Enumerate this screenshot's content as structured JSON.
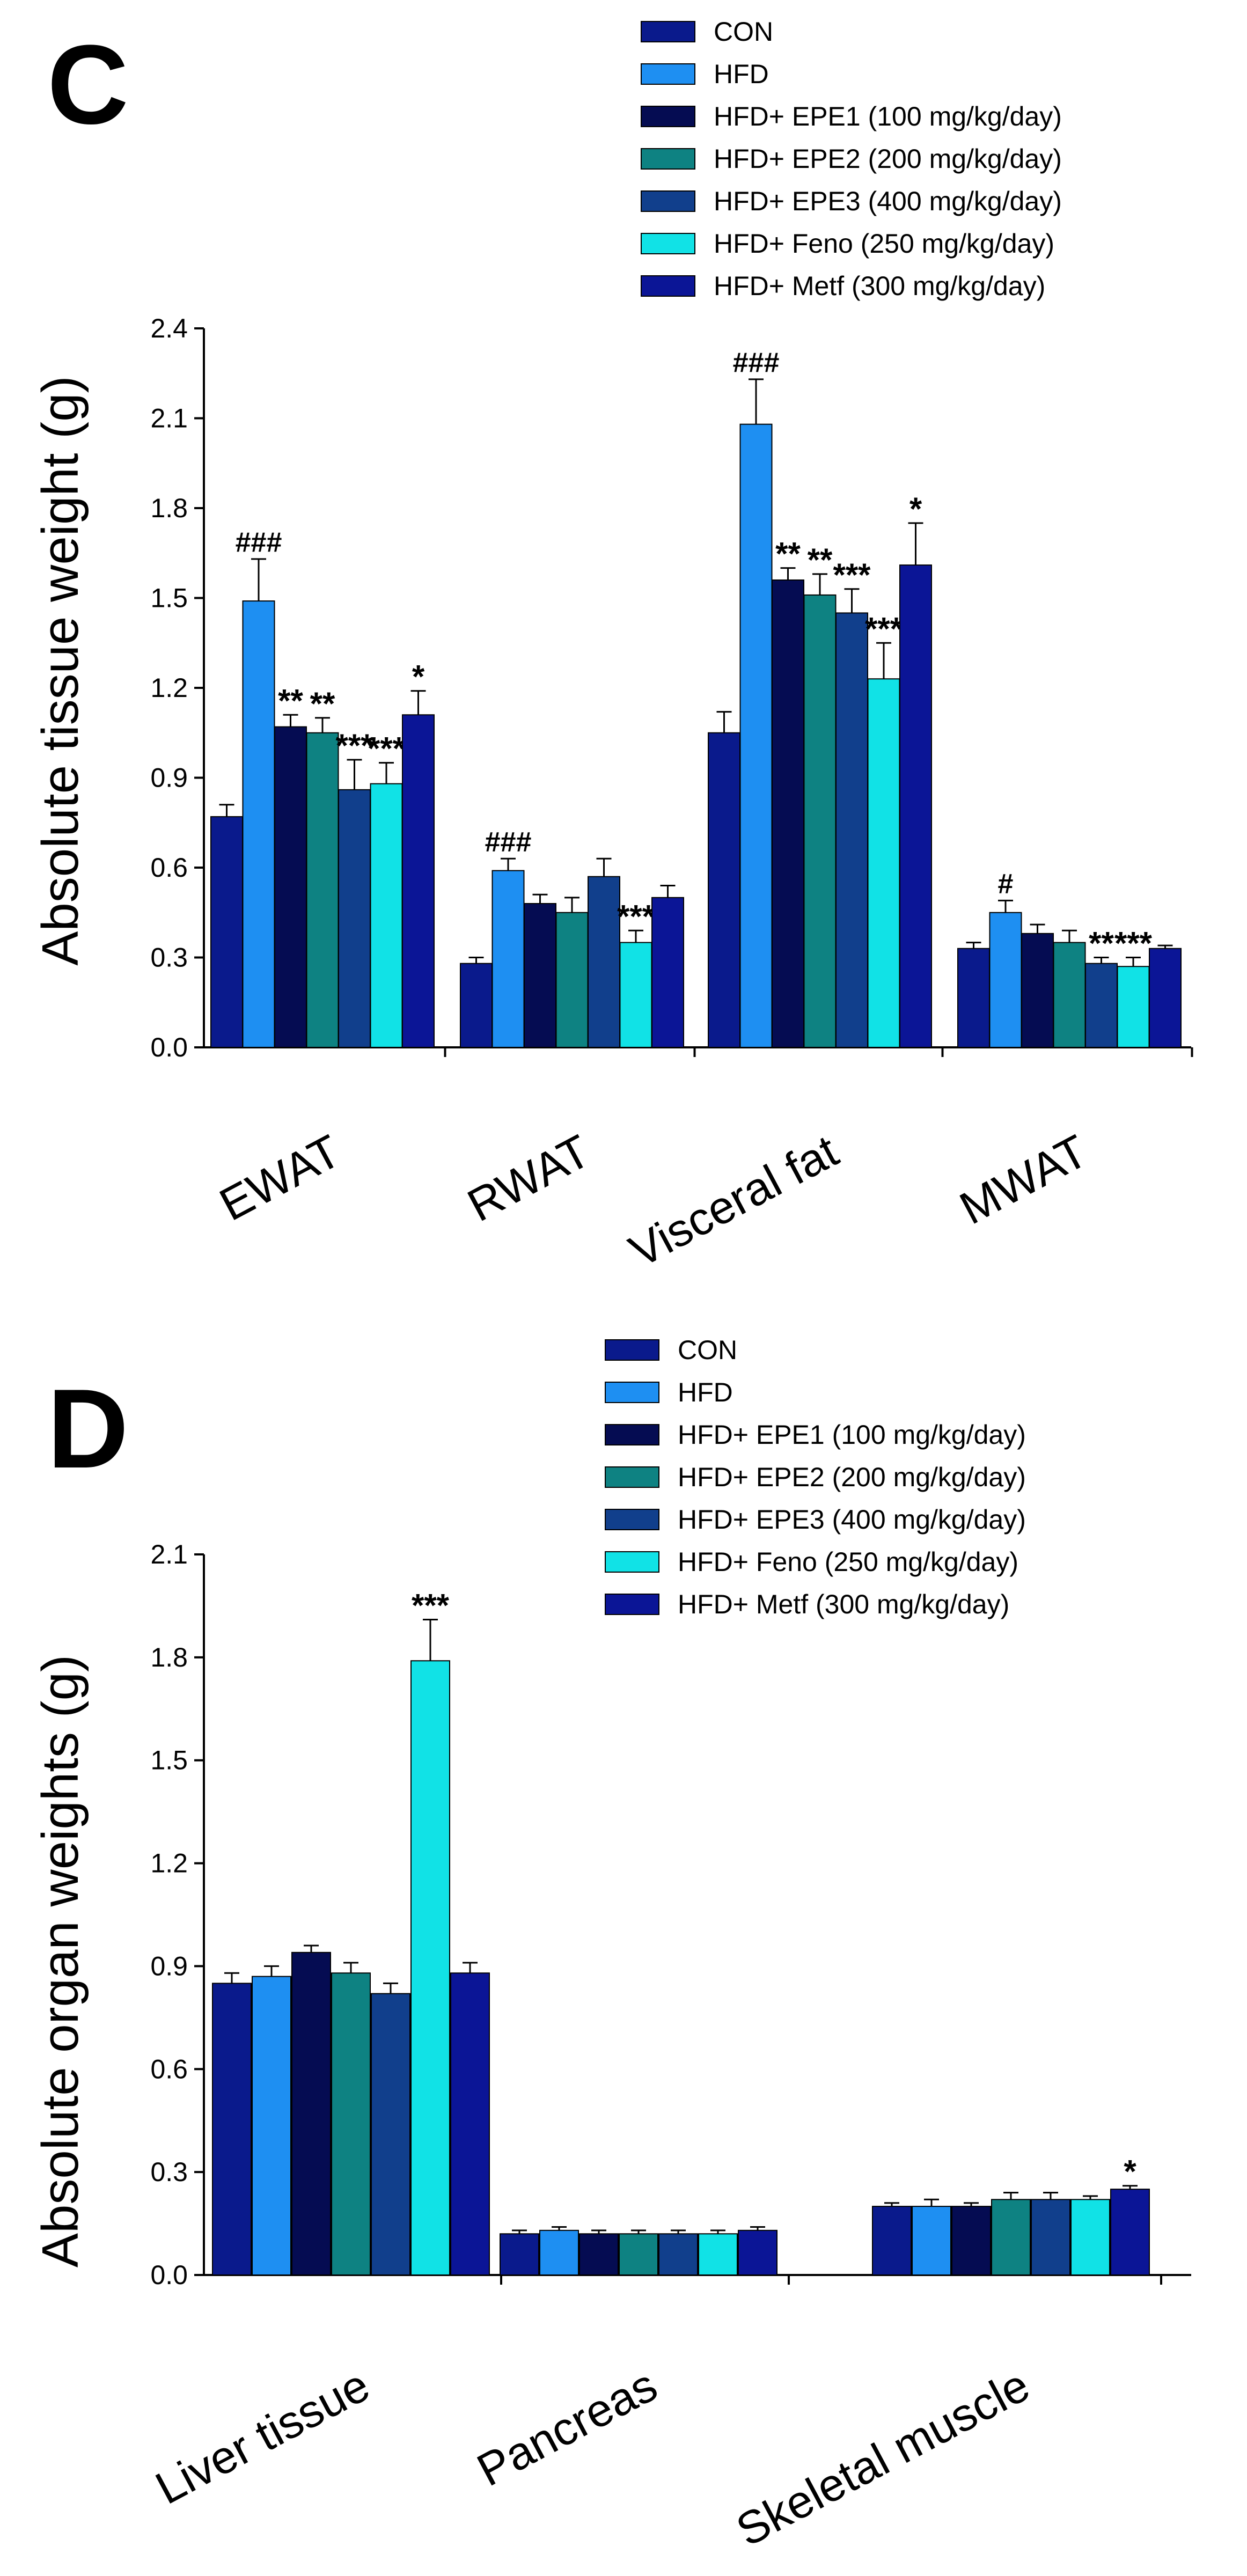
{
  "chart_data": [
    {
      "panel": "C",
      "type": "bar",
      "ylabel": "Absolute tissue weight (g)",
      "xlabel": "",
      "ylim": [
        0,
        2.4
      ],
      "yticks": [
        "0.0",
        "0.3",
        "0.6",
        "0.9",
        "1.2",
        "1.5",
        "1.8",
        "2.1",
        "2.4"
      ],
      "grid": false,
      "legend_position": "top",
      "categories": [
        "EWAT",
        "RWAT",
        "Visceral fat",
        "MWAT"
      ],
      "series": [
        {
          "name": "CON",
          "color": "#0a1a8c",
          "values": [
            0.77,
            0.28,
            1.05,
            0.33
          ],
          "errors": [
            0.04,
            0.02,
            0.07,
            0.02
          ],
          "labels": [
            "",
            "",
            "",
            ""
          ]
        },
        {
          "name": "HFD",
          "color": "#1e8ff2",
          "values": [
            1.49,
            0.59,
            2.08,
            0.45
          ],
          "errors": [
            0.14,
            0.04,
            0.15,
            0.04
          ],
          "labels": [
            "###",
            "###",
            "###",
            "#"
          ]
        },
        {
          "name": "HFD+ EPE1 (100 mg/kg/day)",
          "color": "#050c52",
          "values": [
            1.07,
            0.48,
            1.56,
            0.38
          ],
          "errors": [
            0.04,
            0.03,
            0.04,
            0.03
          ],
          "labels": [
            "**",
            "",
            "**",
            ""
          ]
        },
        {
          "name": "HFD+ EPE2 (200 mg/kg/day)",
          "color": "#0e8282",
          "values": [
            1.05,
            0.45,
            1.51,
            0.35
          ],
          "errors": [
            0.05,
            0.05,
            0.07,
            0.04
          ],
          "labels": [
            "**",
            "",
            "**",
            ""
          ]
        },
        {
          "name": "HFD+ EPE3 (400 mg/kg/day)",
          "color": "#113f8c",
          "values": [
            0.86,
            0.57,
            1.45,
            0.28
          ],
          "errors": [
            0.1,
            0.06,
            0.08,
            0.02
          ],
          "labels": [
            "***",
            "",
            "***",
            "**"
          ]
        },
        {
          "name": "HFD+ Feno (250 mg/kg/day)",
          "color": "#11e2e6",
          "values": [
            0.88,
            0.35,
            1.23,
            0.27
          ],
          "errors": [
            0.07,
            0.04,
            0.12,
            0.03
          ],
          "labels": [
            "***",
            "***",
            "***",
            "***"
          ]
        },
        {
          "name": "HFD+ Metf (300 mg/kg/day)",
          "color": "#0b1596",
          "values": [
            1.11,
            0.5,
            1.61,
            0.33
          ],
          "errors": [
            0.08,
            0.04,
            0.14,
            0.01
          ],
          "labels": [
            "*",
            "",
            "*",
            ""
          ]
        }
      ]
    },
    {
      "panel": "D",
      "type": "bar",
      "ylabel": "Absolute organ weights (g)",
      "xlabel": "",
      "ylim": [
        0,
        2.1
      ],
      "yticks": [
        "0.0",
        "0.3",
        "0.6",
        "0.9",
        "1.2",
        "1.5",
        "1.8",
        "2.1"
      ],
      "grid": false,
      "legend_position": "top",
      "categories": [
        "Liver tissue",
        "Pancreas",
        "Skeletal muscle"
      ],
      "series": [
        {
          "name": "CON",
          "color": "#0a1a8c",
          "values": [
            0.85,
            0.12,
            0.2
          ],
          "errors": [
            0.03,
            0.01,
            0.01
          ],
          "labels": [
            "",
            "",
            ""
          ]
        },
        {
          "name": "HFD",
          "color": "#1e8ff2",
          "values": [
            0.87,
            0.13,
            0.2
          ],
          "errors": [
            0.03,
            0.01,
            0.02
          ],
          "labels": [
            "",
            "",
            ""
          ]
        },
        {
          "name": "HFD+ EPE1 (100 mg/kg/day)",
          "color": "#050c52",
          "values": [
            0.94,
            0.12,
            0.2
          ],
          "errors": [
            0.02,
            0.01,
            0.01
          ],
          "labels": [
            "",
            "",
            ""
          ]
        },
        {
          "name": "HFD+ EPE2 (200 mg/kg/day)",
          "color": "#0e8282",
          "values": [
            0.88,
            0.12,
            0.22
          ],
          "errors": [
            0.03,
            0.01,
            0.02
          ],
          "labels": [
            "",
            "",
            ""
          ]
        },
        {
          "name": "HFD+ EPE3 (400 mg/kg/day)",
          "color": "#113f8c",
          "values": [
            0.82,
            0.12,
            0.22
          ],
          "errors": [
            0.03,
            0.01,
            0.02
          ],
          "labels": [
            "",
            "",
            ""
          ]
        },
        {
          "name": "HFD+ Feno (250 mg/kg/day)",
          "color": "#11e2e6",
          "values": [
            1.79,
            0.12,
            0.22
          ],
          "errors": [
            0.12,
            0.01,
            0.01
          ],
          "labels": [
            "***",
            "",
            ""
          ]
        },
        {
          "name": "HFD+ Metf (300 mg/kg/day)",
          "color": "#0b1596",
          "values": [
            0.88,
            0.13,
            0.25
          ],
          "errors": [
            0.03,
            0.01,
            0.01
          ],
          "labels": [
            "",
            "",
            "*"
          ]
        }
      ]
    }
  ]
}
